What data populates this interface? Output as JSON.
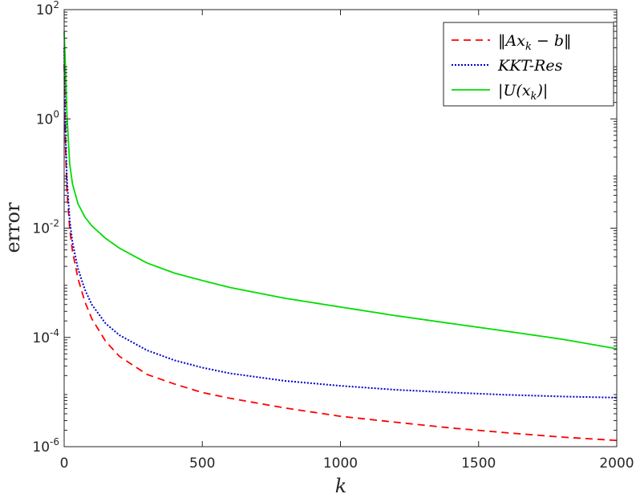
{
  "chart_data": {
    "type": "line",
    "xlabel": "k",
    "ylabel": "error",
    "xlim": [
      0,
      2000
    ],
    "ylim": [
      1e-06,
      100
    ],
    "yscale": "log",
    "x_ticks": [
      0,
      500,
      1000,
      1500,
      2000
    ],
    "y_ticks": [
      {
        "value": 1e-06,
        "base": "10",
        "exp": "-6"
      },
      {
        "value": 0.0001,
        "base": "10",
        "exp": "-4"
      },
      {
        "value": 0.01,
        "base": "10",
        "exp": "-2"
      },
      {
        "value": 1,
        "base": "10",
        "exp": "0"
      },
      {
        "value": 100,
        "base": "10",
        "exp": "2"
      }
    ],
    "grid": false,
    "legend_position": "top-right",
    "series": [
      {
        "name": "‖Ax_k − b‖",
        "color": "#ff0000",
        "style": "dashed",
        "x": [
          0,
          5,
          10,
          20,
          30,
          50,
          75,
          100,
          150,
          200,
          300,
          400,
          500,
          600,
          800,
          1000,
          1200,
          1400,
          1600,
          1800,
          2000
        ],
        "y": [
          10,
          0.3,
          0.05,
          0.0098,
          0.0038,
          0.0012,
          0.00045,
          0.00022,
          8.5e-05,
          4.5e-05,
          2.1e-05,
          1.4e-05,
          9.8e-06,
          7.7e-06,
          5.1e-06,
          3.6e-06,
          2.8e-06,
          2.2e-06,
          1.8e-06,
          1.5e-06,
          1.3e-06
        ]
      },
      {
        "name": "KKT-Res",
        "color": "#0000cc",
        "style": "dotted",
        "x": [
          0,
          5,
          10,
          20,
          30,
          50,
          75,
          100,
          150,
          200,
          300,
          400,
          500,
          600,
          800,
          1000,
          1200,
          1400,
          1600,
          1800,
          2000
        ],
        "y": [
          20,
          0.5,
          0.08,
          0.014,
          0.0055,
          0.0018,
          0.00075,
          0.0004,
          0.00018,
          0.00011,
          5.8e-05,
          3.8e-05,
          2.8e-05,
          2.2e-05,
          1.6e-05,
          1.3e-05,
          1.1e-05,
          9.8e-06,
          8.9e-06,
          8.3e-06,
          7.9e-06
        ]
      },
      {
        "name": "|U(x_k)|",
        "color": "#00dd00",
        "style": "solid",
        "x": [
          0,
          5,
          10,
          20,
          30,
          50,
          75,
          100,
          150,
          200,
          300,
          400,
          500,
          600,
          800,
          1000,
          1200,
          1400,
          1600,
          1800,
          2000
        ],
        "y": [
          40,
          8,
          1.2,
          0.15,
          0.065,
          0.028,
          0.016,
          0.011,
          0.0065,
          0.0043,
          0.0023,
          0.0015,
          0.0011,
          0.00082,
          0.00052,
          0.00036,
          0.00025,
          0.00018,
          0.00013,
          9.3e-05,
          6.2e-05
        ]
      }
    ],
    "legend": [
      {
        "label": "‖Ax",
        "sub": "k",
        "rest": " − b‖"
      },
      {
        "label": "KKT-Res",
        "sub": "",
        "rest": ""
      },
      {
        "label": "|U(x",
        "sub": "k",
        "rest": ")|"
      }
    ]
  }
}
